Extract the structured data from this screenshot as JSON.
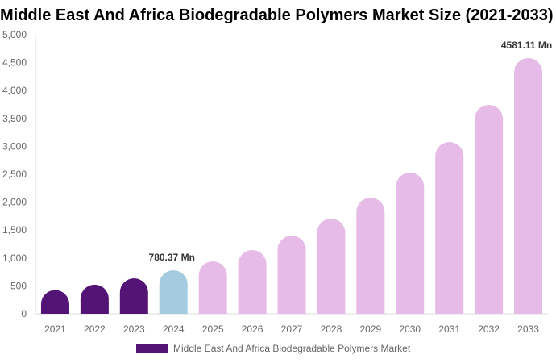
{
  "chart_data": {
    "type": "bar",
    "title": "Middle East And Africa Biodegradable Polymers Market Size (2021-2033)",
    "categories": [
      "2021",
      "2022",
      "2023",
      "2024",
      "2025",
      "2026",
      "2027",
      "2028",
      "2029",
      "2030",
      "2031",
      "2032",
      "2033"
    ],
    "series": [
      {
        "name": "Middle East And Africa Biodegradable Polymers Market",
        "values": [
          425,
          522,
          636,
          780.37,
          939,
          1142,
          1402,
          1705,
          2081,
          2529,
          3078,
          3743,
          4581.11
        ]
      }
    ],
    "data_labels": {
      "3": "780.37 Mn",
      "12": "4581.11 Mn"
    },
    "ylim": [
      0,
      5000
    ],
    "yticks": [
      "0",
      "500",
      "1,000",
      "1,500",
      "2,000",
      "2,500",
      "3,000",
      "3,500",
      "4,000",
      "4,500",
      "5,000"
    ],
    "grid": false,
    "legend_position": "bottom",
    "colors": {
      "historical": "#541475",
      "current": "#a4cbdf",
      "forecast": "#e6bbe8"
    },
    "legend_color": "#541475"
  }
}
